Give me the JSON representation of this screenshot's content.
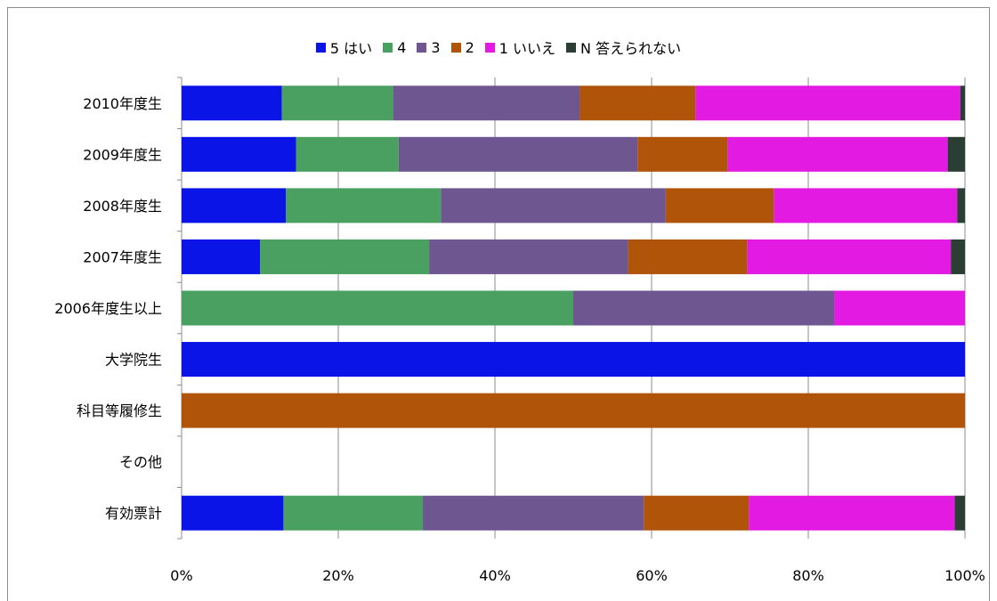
{
  "chart_data": {
    "type": "bar",
    "orientation": "horizontal",
    "stacked": "percent",
    "categories": [
      "2010年度生",
      "2009年度生",
      "2008年度生",
      "2007年度生",
      "2006年度生以上",
      "大学院生",
      "科目等履修生",
      "その他",
      "有効票計"
    ],
    "series": [
      {
        "name": "5 はい",
        "color": "#0a14e6",
        "values": [
          12.8,
          14.6,
          13.3,
          10.0,
          0,
          100,
          0,
          0,
          13.0
        ]
      },
      {
        "name": "4",
        "color": "#4aa060",
        "values": [
          14.2,
          13.1,
          19.8,
          21.6,
          50.0,
          0,
          0,
          0,
          17.8
        ]
      },
      {
        "name": "3",
        "color": "#6e5690",
        "values": [
          23.8,
          30.5,
          28.7,
          25.4,
          33.3,
          0,
          0,
          0,
          28.2
        ]
      },
      {
        "name": "2",
        "color": "#b0540a",
        "values": [
          14.8,
          11.5,
          13.8,
          15.2,
          0,
          0,
          100,
          0,
          13.4
        ]
      },
      {
        "name": "1 いいえ",
        "color": "#e21ae2",
        "values": [
          33.8,
          28.1,
          23.4,
          26.0,
          16.7,
          0,
          0,
          0,
          26.3
        ]
      },
      {
        "name": "N 答えられない",
        "color": "#2b3e34",
        "values": [
          0.6,
          2.2,
          1.0,
          1.8,
          0,
          0,
          0,
          0,
          1.3
        ]
      }
    ],
    "xlim": [
      0,
      100
    ],
    "x_ticks": [
      "0%",
      "20%",
      "40%",
      "60%",
      "80%",
      "100%"
    ],
    "title": "",
    "xlabel": "",
    "ylabel": "",
    "grid": true,
    "legend_position": "top"
  }
}
